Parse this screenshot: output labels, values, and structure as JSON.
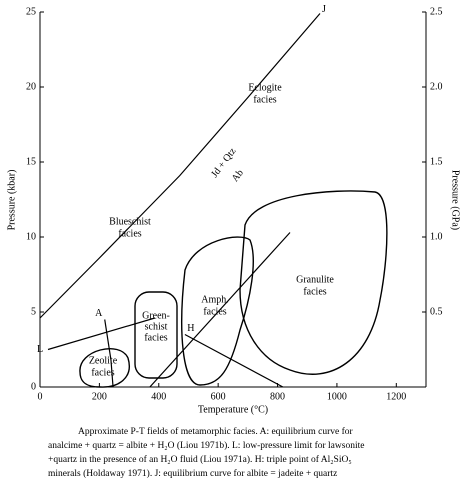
{
  "chart_data": {
    "type": "line",
    "xlabel": "Temperature (°C)",
    "ylabel": "Pressure (kbar)",
    "y2label": "Pressure (GPa)",
    "xlim": [
      0,
      1300
    ],
    "xticks": [
      0,
      200,
      400,
      600,
      800,
      1000,
      1200
    ],
    "ylim": [
      0,
      25
    ],
    "yticks": [
      0,
      5,
      10,
      15,
      20,
      25
    ],
    "y2lim": [
      0,
      2.5
    ],
    "y2ticks": [
      {
        "value": 0.5,
        "label": "0.5"
      },
      {
        "value": 1,
        "label": "1.0"
      },
      {
        "value": 1.5,
        "label": "1.5"
      },
      {
        "value": 2,
        "label": "2.0"
      },
      {
        "value": 2.5,
        "label": "2.5"
      }
    ],
    "series": [
      {
        "name": "J",
        "color": "#000",
        "x": [
          0,
          200,
          471,
          700,
          943
        ],
        "values": [
          4.6,
          8.6,
          14.1,
          19.3,
          24.9
        ]
      },
      {
        "name": "A",
        "color": "#000",
        "x": [
          218,
          239,
          246
        ],
        "values": [
          4.5,
          1.8,
          0
        ]
      },
      {
        "name": "L",
        "color": "#000",
        "x": [
          27,
          387
        ],
        "values": [
          2.5,
          4.6
        ]
      },
      {
        "name": "H",
        "color": "#000",
        "x": [
          370,
          842,
          null,
          488,
          818
        ],
        "values": [
          0,
          10.3,
          null,
          3.5,
          0
        ]
      }
    ],
    "curve_label": [
      "Jd + Qtz",
      "Ab"
    ],
    "facies": [
      [
        "Zeolite",
        "facies"
      ],
      [
        "Green-",
        "schist",
        "facies"
      ],
      [
        "Amph.",
        "facies"
      ],
      [
        "Granulite",
        "facies"
      ],
      [
        "Blueschist",
        "facies"
      ],
      [
        "Eclogite",
        "facies"
      ]
    ],
    "caption": [
      "Approximate P-T fields of metamorphic facies. A: equilibrium curve for",
      "analcime + quartz = albite + H₂O (Liou 1971b). L: low-pressure limit for lawsonite",
      "+quartz in the presence of an H₂O fluid (Liou 1971a). H: triple point of Al₂SiO₅",
      "minerals (Holdaway 1971). J: equilibrium curve for albite = jadeite + quartz"
    ]
  }
}
